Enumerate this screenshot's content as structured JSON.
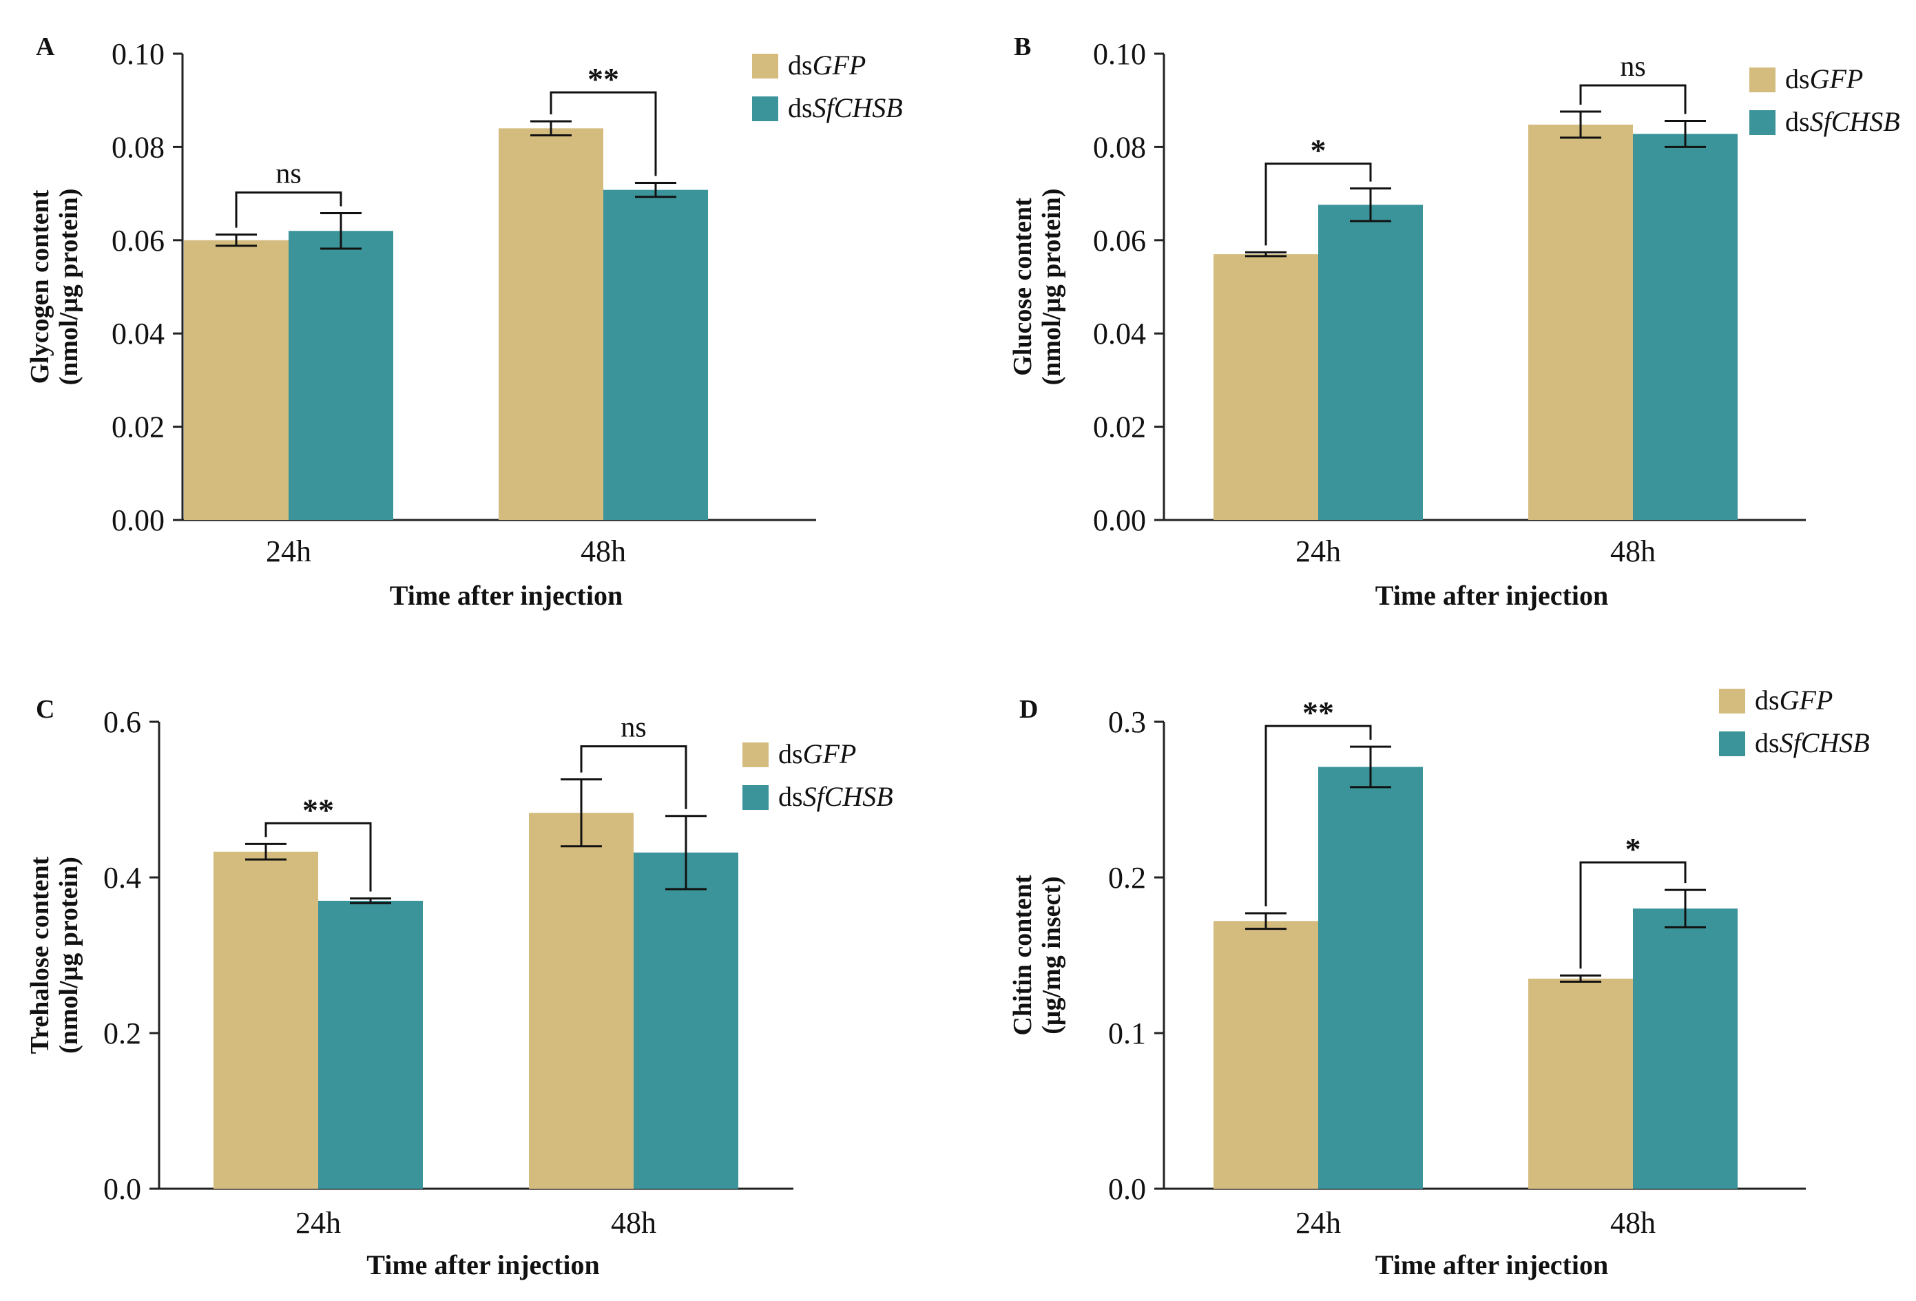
{
  "chart_data": [
    {
      "panel": "A",
      "type": "bar",
      "title": "",
      "xlabel": "Time after injection",
      "ylabel": [
        "Glycogen content",
        "(nmol/μg protein)"
      ],
      "ylim": [
        0,
        0.1
      ],
      "yticks": [
        "0.00",
        "0.02",
        "0.04",
        "0.06",
        "0.08",
        "0.10"
      ],
      "ytick_values": [
        0,
        0.02,
        0.04,
        0.06,
        0.08,
        0.1
      ],
      "categories": [
        "24h",
        "48h"
      ],
      "series": [
        {
          "name": "dsGFP",
          "prefix": "ds",
          "italic": "GFP",
          "color": "#d4bc7f",
          "values": [
            0.06,
            0.084
          ],
          "errors": [
            0.0012,
            0.0015
          ]
        },
        {
          "name": "dsSfCHSB",
          "prefix": "ds",
          "italic": "SfCHSB",
          "color": "#3b9499",
          "values": [
            0.062,
            0.0708
          ],
          "errors": [
            0.0038,
            0.0015
          ]
        }
      ],
      "significance": [
        "ns",
        "**"
      ],
      "legend_position": "top-right"
    },
    {
      "panel": "B",
      "type": "bar",
      "title": "",
      "xlabel": "Time after injection",
      "ylabel": [
        "Glucose content",
        "(nmol/μg protein)"
      ],
      "ylim": [
        0,
        0.1
      ],
      "yticks": [
        "0.00",
        "0.02",
        "0.04",
        "0.06",
        "0.08",
        "0.10"
      ],
      "ytick_values": [
        0,
        0.02,
        0.04,
        0.06,
        0.08,
        0.1
      ],
      "categories": [
        "24h",
        "48h"
      ],
      "series": [
        {
          "name": "dsGFP",
          "prefix": "ds",
          "italic": "GFP",
          "color": "#d4bc7f",
          "values": [
            0.057,
            0.0848
          ],
          "errors": [
            0.0004,
            0.0028
          ]
        },
        {
          "name": "dsSfCHSB",
          "prefix": "ds",
          "italic": "SfCHSB",
          "color": "#3b9499",
          "values": [
            0.0676,
            0.0828
          ],
          "errors": [
            0.0035,
            0.0028
          ]
        }
      ],
      "significance": [
        "*",
        "ns"
      ],
      "legend_position": "top-right"
    },
    {
      "panel": "C",
      "type": "bar",
      "title": "",
      "xlabel": "Time after injection",
      "ylabel": [
        "Trehalose content",
        "(nmol/μg protein)"
      ],
      "ylim": [
        0,
        0.6
      ],
      "yticks": [
        "0.0",
        "0.2",
        "0.4",
        "0.6"
      ],
      "ytick_values": [
        0,
        0.2,
        0.4,
        0.6
      ],
      "categories": [
        "24h",
        "48h"
      ],
      "series": [
        {
          "name": "dsGFP",
          "prefix": "ds",
          "italic": "GFP",
          "color": "#d4bc7f",
          "values": [
            0.433,
            0.483
          ],
          "errors": [
            0.01,
            0.043
          ]
        },
        {
          "name": "dsSfCHSB",
          "prefix": "ds",
          "italic": "SfCHSB",
          "color": "#3b9499",
          "values": [
            0.37,
            0.432
          ],
          "errors": [
            0.003,
            0.047
          ]
        }
      ],
      "significance": [
        "**",
        "ns"
      ],
      "legend_position": "top-right"
    },
    {
      "panel": "D",
      "type": "bar",
      "title": "",
      "xlabel": "Time after injection",
      "ylabel": [
        "Chitin content",
        "(μg/mg insect)"
      ],
      "ylim": [
        0,
        0.3
      ],
      "yticks": [
        "0.0",
        "0.1",
        "0.2",
        "0.3"
      ],
      "ytick_values": [
        0,
        0.1,
        0.2,
        0.3
      ],
      "categories": [
        "24h",
        "48h"
      ],
      "series": [
        {
          "name": "dsGFP",
          "prefix": "ds",
          "italic": "GFP",
          "color": "#d4bc7f",
          "values": [
            0.172,
            0.135
          ],
          "errors": [
            0.005,
            0.002
          ]
        },
        {
          "name": "dsSfCHSB",
          "prefix": "ds",
          "italic": "SfCHSB",
          "color": "#3b9499",
          "values": [
            0.271,
            0.18
          ],
          "errors": [
            0.013,
            0.012
          ]
        }
      ],
      "significance": [
        "**",
        "*"
      ],
      "legend_position": "top-right"
    }
  ]
}
